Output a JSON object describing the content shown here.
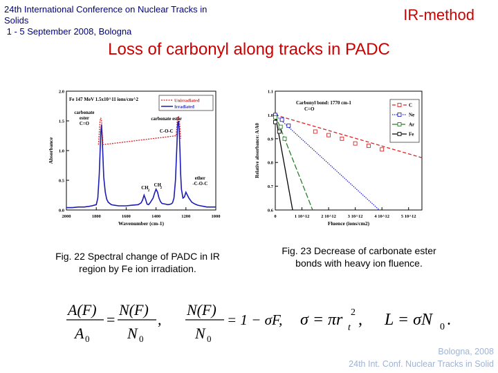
{
  "header": {
    "conference_line1": "24th International Conference on Nuclear Tracks in",
    "conference_line2": "Solids",
    "conference_line3": " 1 - 5 September 2008, Bologna",
    "method": "IR-method"
  },
  "slide_title": "Loss of carbonyl along tracks in PADC",
  "captions": {
    "fig22": "Fig. 22 Spectral change of PADC in IR region by Fe ion irradiation.",
    "fig23": "Fig. 23 Decrease of carbonate ester bonds with heavy ion fluence."
  },
  "chart_data": [
    {
      "type": "line",
      "title": "Fe 147 MeV 1.5x10^11 ions/cm^2",
      "xlabel": "Wavenumber (cm-1)",
      "ylabel": "Absorbance",
      "x_ticks": [
        "2000",
        "1800",
        "1600",
        "1400",
        "1200",
        "1000"
      ],
      "y_ticks": [
        "0.0",
        "0.5",
        "1.0",
        "1.5",
        "2.0"
      ],
      "xlim": [
        2000,
        1000
      ],
      "ylim": [
        0,
        2.0
      ],
      "x_ticks_values": [
        2000,
        1800,
        1600,
        1400,
        1200,
        1000
      ],
      "y_ticks_values": [
        0,
        0.5,
        1.0,
        1.5,
        2.0
      ],
      "legend": [
        "Unirradiated",
        "Irradiated"
      ],
      "annotations": [
        {
          "text": "carbonate ester C=O",
          "lines": [
            "carbonate",
            "ester",
            "C=O"
          ]
        },
        {
          "text": "carbonate ester",
          "lines": [
            "carbonate ester"
          ]
        },
        {
          "text": "C-O-C",
          "lines": [
            "C-O-C"
          ]
        },
        {
          "text": "ether -C-O-C",
          "lines": [
            "ether",
            "-C-O-C"
          ]
        },
        {
          "text": "CH2 CH2",
          "lines": [
            "CH",
            "2",
            "CH",
            "2"
          ]
        }
      ],
      "series": [
        {
          "name": "Irradiated",
          "x": [
            2000,
            1960,
            1920,
            1880,
            1850,
            1830,
            1800,
            1790,
            1780,
            1770,
            1765,
            1760,
            1750,
            1740,
            1730,
            1720,
            1700,
            1680,
            1650,
            1620,
            1600,
            1560,
            1520,
            1500,
            1490,
            1480,
            1470,
            1460,
            1450,
            1440,
            1420,
            1410,
            1400,
            1390,
            1380,
            1370,
            1360,
            1340,
            1320,
            1300,
            1290,
            1280,
            1270,
            1260,
            1255,
            1250,
            1245,
            1240,
            1235,
            1230,
            1220,
            1210,
            1200,
            1180,
            1160,
            1140,
            1120,
            1100,
            1080,
            1060,
            1040,
            1020,
            1000
          ],
          "y": [
            0.04,
            0.04,
            0.05,
            0.05,
            0.06,
            0.07,
            0.09,
            0.2,
            0.6,
            1.3,
            1.44,
            1.2,
            0.55,
            0.3,
            0.18,
            0.13,
            0.09,
            0.08,
            0.07,
            0.07,
            0.07,
            0.08,
            0.09,
            0.12,
            0.17,
            0.25,
            0.18,
            0.1,
            0.09,
            0.12,
            0.2,
            0.28,
            0.35,
            0.3,
            0.2,
            0.14,
            0.11,
            0.1,
            0.09,
            0.1,
            0.12,
            0.2,
            0.5,
            1.1,
            1.45,
            1.5,
            1.35,
            1.0,
            0.6,
            0.35,
            0.2,
            0.22,
            0.3,
            0.2,
            0.13,
            0.1,
            0.08,
            0.07,
            0.06,
            0.05,
            0.05,
            0.05,
            0.05
          ]
        },
        {
          "name": "Unirradiated",
          "x": [
            1785,
            1775,
            1770,
            1765,
            1755,
            1265,
            1258,
            1250,
            1243,
            1235
          ],
          "y": [
            1.1,
            1.5,
            1.55,
            1.5,
            1.1,
            1.25,
            1.52,
            1.58,
            1.5,
            1.2
          ]
        }
      ]
    },
    {
      "type": "line",
      "title": "Carbonyl bond: 1770 cm-1 C=O",
      "xlabel": "Fluence (ions/cm2)",
      "ylabel": "Relative absorbance: A/A0",
      "x_ticks": [
        "0",
        "1 10^12",
        "2 10^12",
        "3 10^12",
        "4 10^12",
        "5 10^12"
      ],
      "y_ticks": [
        "0.6",
        "0.7",
        "0.8",
        "0.9",
        "1.0",
        "1.1"
      ],
      "xlim": [
        0,
        5500000000000.0
      ],
      "ylim": [
        0.6,
        1.1
      ],
      "x_ticks_values": [
        0,
        1000000000000.0,
        2000000000000.0,
        3000000000000.0,
        4000000000000.0,
        5000000000000.0
      ],
      "y_ticks_values": [
        0.6,
        0.7,
        0.8,
        0.9,
        1.0,
        1.1
      ],
      "legend": [
        "C",
        "Ne",
        "Ar",
        "Fe"
      ],
      "series": [
        {
          "name": "C",
          "color": "#dd2222",
          "x": [
            0,
            1500000000000.0,
            2000000000000.0,
            2500000000000.0,
            3000000000000.0,
            3500000000000.0,
            4000000000000.0
          ],
          "y": [
            1.0,
            0.93,
            0.915,
            0.9,
            0.88,
            0.87,
            0.855
          ],
          "fit": [
            [
              0,
              1.0
            ],
            [
              5500000000000.0,
              0.82
            ]
          ]
        },
        {
          "name": "Ne",
          "color": "#2222cc",
          "x": [
            0,
            250000000000.0,
            500000000000.0
          ],
          "y": [
            1.0,
            0.98,
            0.955
          ],
          "fit": [
            [
              0,
              1.0
            ],
            [
              3900000000000.0,
              0.6
            ]
          ]
        },
        {
          "name": "Ar",
          "color": "#2a7a2a",
          "x": [
            0,
            200000000000.0,
            350000000000.0
          ],
          "y": [
            0.99,
            0.95,
            0.9
          ],
          "fit": [
            [
              0,
              1.0
            ],
            [
              1400000000000.0,
              0.6
            ]
          ]
        },
        {
          "name": "Fe",
          "color": "#000000",
          "x": [
            0,
            150000000000.0
          ],
          "y": [
            0.97,
            0.93
          ],
          "fit": [
            [
              0,
              1.0
            ],
            [
              650000000000.0,
              0.6
            ]
          ]
        }
      ]
    }
  ],
  "equations": {
    "eq1_lhs_num": "A(F)",
    "eq1_lhs_den": "A",
    "eq1_lhs_den_sub": "0",
    "eq1_rhs_num": "N(F)",
    "eq1_rhs_den": "N",
    "eq1_rhs_den_sub": "0",
    "eq2_num": "N(F)",
    "eq2_den": "N",
    "eq2_den_sub": "0",
    "eq2_rhs": "= 1 − σF,",
    "eq3": "σ = πr",
    "eq3_sup": "2",
    "eq3_sub": "t",
    "eq4": "L = σN",
    "eq4_sub": "0",
    "eq4_end": "."
  },
  "footer": {
    "line1": "Bologna,  2008",
    "line2": "24th Int. Conf. Nuclear Tracks in Solid"
  }
}
